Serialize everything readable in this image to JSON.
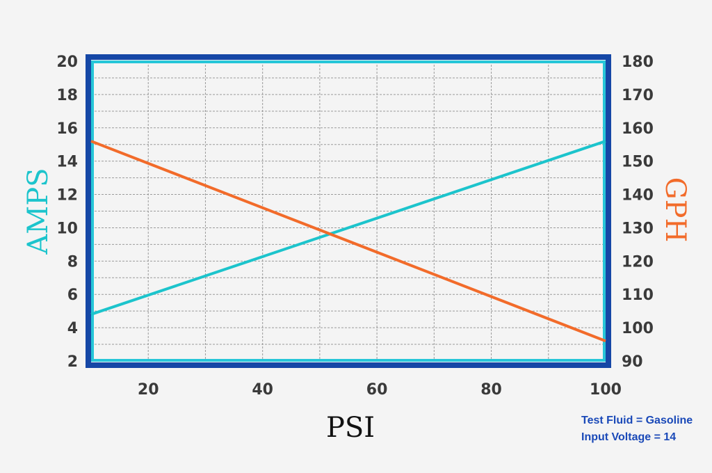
{
  "chart_data": {
    "type": "line",
    "x": [
      10,
      100
    ],
    "xlabel": "PSI",
    "xlim": [
      10,
      100
    ],
    "xticks": [
      20,
      40,
      60,
      80,
      100
    ],
    "ylabel_left": "AMPS",
    "ylim_left": [
      2,
      20
    ],
    "yticks_left": [
      2,
      4,
      6,
      8,
      10,
      12,
      14,
      16,
      18,
      20
    ],
    "ylabel_right": "GPH",
    "ylim_right": [
      90,
      180
    ],
    "yticks_right": [
      90,
      100,
      110,
      120,
      130,
      140,
      150,
      160,
      170,
      180
    ],
    "grid": true,
    "series": [
      {
        "axis": "left",
        "color": "#1cc4cc",
        "x": [
          10,
          100
        ],
        "values": [
          4.8,
          15.2
        ]
      },
      {
        "axis": "right",
        "color": "#f26b2a",
        "x": [
          10,
          100
        ],
        "values": [
          156,
          96
        ]
      }
    ],
    "annotations": [
      "Test Fluid = Gasoline",
      "Input Voltage = 14"
    ]
  },
  "colors": {
    "frame": "#1547a6",
    "plot_border": "#26c6d8",
    "grid": "#9a9a9a",
    "amps": "#1cc4cc",
    "gph": "#f26b2a",
    "note": "#1a49b8"
  }
}
